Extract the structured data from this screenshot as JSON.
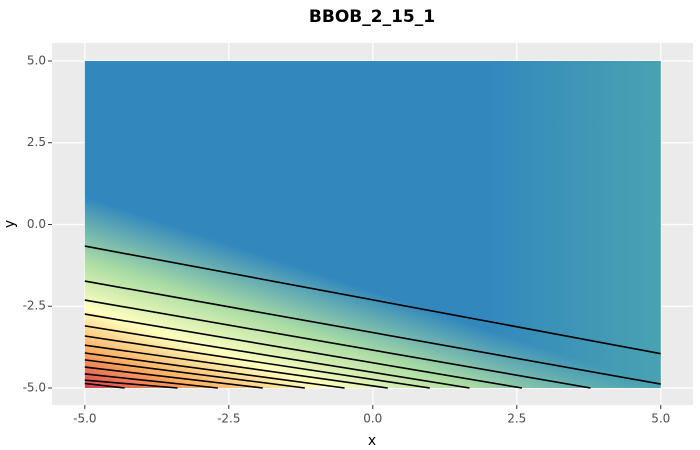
{
  "chart_data": {
    "type": "contour",
    "title": "BBOB_2_15_1",
    "xlabel": "x",
    "ylabel": "y",
    "xlim": [
      -5.57,
      5.56
    ],
    "ylim": [
      -5.52,
      5.55
    ],
    "xticks": [
      {
        "value": -5,
        "label": "-5.0"
      },
      -2.5,
      {
        "value": 0,
        "label": "0.0"
      },
      2.5,
      {
        "value": 5,
        "label": "5.0"
      }
    ],
    "yticks": [
      {
        "value": -5,
        "label": "-5.0"
      },
      -2.5,
      {
        "value": 0,
        "label": "0.0"
      },
      2.5,
      {
        "value": 5,
        "label": "5.0"
      }
    ],
    "grid": true,
    "line_color": "#000000",
    "contours": [
      {
        "x": [
          -5,
          5
        ],
        "y": [
          -0.66,
          -3.95
        ]
      },
      {
        "x": [
          -5,
          5
        ],
        "y": [
          -1.73,
          -4.88
        ]
      },
      {
        "x": [
          -5,
          3.78
        ],
        "y": [
          -2.31,
          -5
        ]
      },
      {
        "x": [
          -5,
          2.59
        ],
        "y": [
          -2.74,
          -5
        ]
      },
      {
        "x": [
          -5,
          1.68
        ],
        "y": [
          -3.1,
          -5
        ]
      },
      {
        "x": [
          -5,
          0.99
        ],
        "y": [
          -3.41,
          -5
        ]
      },
      {
        "x": [
          -5,
          0.26
        ],
        "y": [
          -3.69,
          -5
        ]
      },
      {
        "x": [
          -5,
          -0.49
        ],
        "y": [
          -3.93,
          -5
        ]
      },
      {
        "x": [
          -5,
          -1.18
        ],
        "y": [
          -4.14,
          -5
        ]
      },
      {
        "x": [
          -5,
          -1.91
        ],
        "y": [
          -4.36,
          -5
        ]
      },
      {
        "x": [
          -5,
          -2.69
        ],
        "y": [
          -4.57,
          -5
        ]
      },
      {
        "x": [
          -5,
          -3.39
        ],
        "y": [
          -4.76,
          -5
        ]
      },
      {
        "x": [
          -5,
          -4.31
        ],
        "y": [
          -4.86,
          -5
        ]
      }
    ]
  }
}
